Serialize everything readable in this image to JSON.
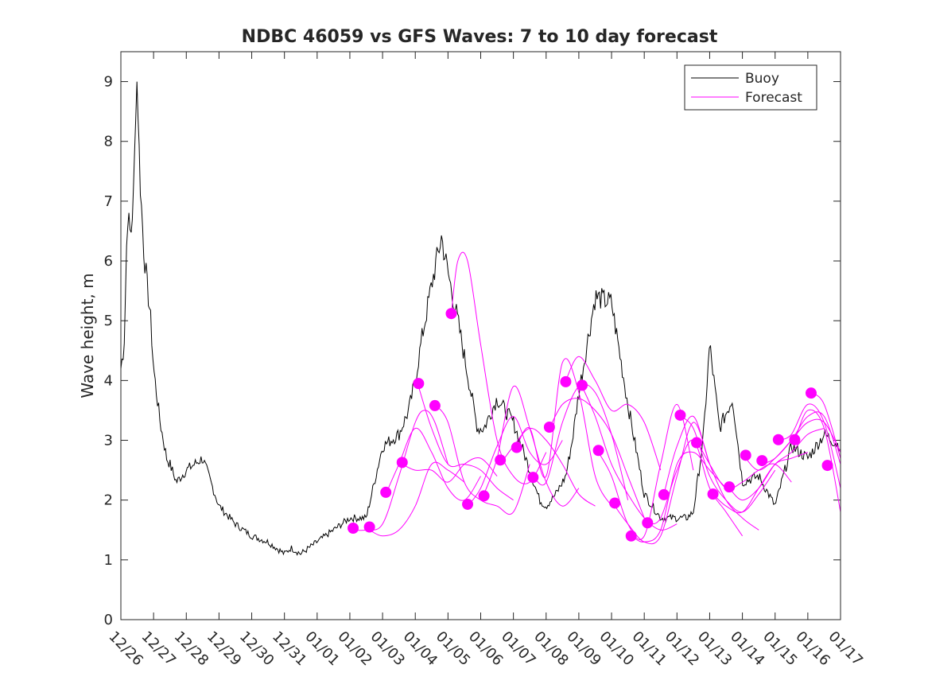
{
  "chart_data": {
    "type": "line",
    "title": "NDBC 46059 vs GFS Waves: 7 to 10 day forecast",
    "xlabel": "",
    "ylabel": "Wave height, m",
    "ylim": [
      0,
      9.5
    ],
    "yticks": [
      0,
      1,
      2,
      3,
      4,
      5,
      6,
      7,
      8,
      9
    ],
    "xlim": [
      0,
      22
    ],
    "xtick_labels": [
      "12/26",
      "12/27",
      "12/28",
      "12/29",
      "12/30",
      "12/31",
      "01/01",
      "01/02",
      "01/03",
      "01/04",
      "01/05",
      "01/06",
      "01/07",
      "01/08",
      "01/09",
      "01/10",
      "01/11",
      "01/12",
      "01/13",
      "01/14",
      "01/15",
      "01/16",
      "01/17"
    ],
    "legend": {
      "location": "top-right",
      "entries": [
        {
          "label": "Buoy",
          "color": "#000000"
        },
        {
          "label": "Forecast",
          "color": "#ff00ff"
        }
      ]
    },
    "series": [
      {
        "name": "Buoy",
        "color": "#000000",
        "x_days": [
          0,
          0.1,
          0.2,
          0.3,
          0.4,
          0.45,
          0.5,
          0.55,
          0.6,
          0.7,
          0.8,
          0.9,
          1.0,
          1.2,
          1.4,
          1.5,
          1.7,
          2.0,
          2.5,
          2.75,
          3.0,
          3.5,
          4.0,
          4.5,
          5.0,
          5.2,
          5.5,
          6.0,
          6.5,
          7.0,
          7.5,
          8.0,
          8.5,
          8.8,
          9.0,
          9.2,
          9.5,
          9.8,
          10.0,
          10.3,
          10.6,
          10.9,
          11.1,
          11.5,
          12.0,
          12.5,
          12.8,
          13.0,
          13.3,
          13.6,
          13.8,
          14.0,
          14.5,
          15.0,
          15.5,
          16.0,
          16.5,
          17.0,
          17.3,
          17.5,
          17.8,
          18.0,
          18.3,
          18.7,
          19.0,
          19.5,
          20.0,
          20.5,
          21.0,
          21.5,
          22.0
        ],
        "values": [
          4.2,
          4.6,
          6.8,
          6.4,
          7.2,
          8.6,
          9.1,
          8.0,
          7.2,
          6.2,
          5.6,
          5.1,
          4.2,
          3.3,
          2.7,
          2.6,
          2.3,
          2.5,
          2.7,
          2.3,
          1.9,
          1.6,
          1.4,
          1.3,
          1.1,
          1.2,
          1.1,
          1.3,
          1.5,
          1.7,
          1.7,
          2.9,
          3.1,
          3.5,
          4.0,
          4.7,
          5.6,
          6.4,
          5.8,
          5.0,
          4.1,
          3.2,
          3.2,
          3.7,
          3.3,
          2.5,
          2.0,
          1.9,
          2.1,
          2.4,
          3.0,
          3.8,
          5.4,
          5.3,
          3.6,
          2.1,
          1.7,
          1.7,
          1.7,
          1.8,
          3.0,
          4.6,
          3.2,
          3.7,
          2.3,
          2.4,
          1.9,
          2.9,
          2.7,
          3.1,
          2.9
        ],
        "markers": false
      },
      {
        "name": "Forecast",
        "color": "#ff00ff",
        "runs": [
          {
            "x_days": [
              7.1,
              7.5,
              8.0,
              8.5,
              9.0,
              9.3,
              9.6,
              10.0
            ],
            "values": [
              1.5,
              1.5,
              1.6,
              2.4,
              3.3,
              3.5,
              3.3,
              2.6
            ]
          },
          {
            "x_days": [
              7.6,
              8.0,
              8.5,
              9.0,
              9.5,
              10.0,
              10.5
            ],
            "values": [
              1.5,
              1.4,
              1.5,
              1.9,
              2.6,
              2.5,
              2.3
            ]
          },
          {
            "x_days": [
              8.1,
              8.5,
              9.0,
              9.5,
              10.0,
              10.5,
              11.0
            ],
            "values": [
              2.1,
              2.6,
              3.2,
              2.8,
              2.2,
              2.0,
              2.4
            ]
          },
          {
            "x_days": [
              8.6,
              9.0,
              9.5,
              10.0,
              10.5,
              11.0,
              11.5
            ],
            "values": [
              2.6,
              2.5,
              2.5,
              2.3,
              2.6,
              2.7,
              2.4
            ]
          },
          {
            "x_days": [
              9.1,
              9.5,
              10.0,
              10.5,
              11.0,
              11.5,
              12.0
            ],
            "values": [
              3.9,
              3.2,
              2.6,
              2.6,
              2.5,
              2.2,
              2.0
            ]
          },
          {
            "x_days": [
              9.6,
              10.0,
              10.5,
              11.0,
              11.5,
              12.0,
              12.5
            ],
            "values": [
              3.6,
              3.3,
              2.3,
              2.0,
              1.9,
              1.8,
              2.6
            ]
          },
          {
            "x_days": [
              10.1,
              10.3,
              10.6,
              11.0,
              11.5,
              12.0,
              12.5,
              13.0
            ],
            "values": [
              5.1,
              6.0,
              6.0,
              4.6,
              3.0,
              2.4,
              2.3,
              2.8
            ]
          },
          {
            "x_days": [
              10.6,
              11.0,
              11.5,
              12.0,
              12.5,
              13.0,
              13.5
            ],
            "values": [
              1.9,
              2.2,
              2.9,
              3.4,
              2.8,
              2.6,
              3.0
            ]
          },
          {
            "x_days": [
              11.1,
              11.5,
              12.0,
              12.5,
              13.0,
              13.5,
              14.0
            ],
            "values": [
              2.1,
              2.7,
              3.9,
              3.2,
              2.3,
              1.9,
              2.2
            ]
          },
          {
            "x_days": [
              11.6,
              12.0,
              12.5,
              13.0,
              13.5,
              14.0,
              14.5
            ],
            "values": [
              2.6,
              2.9,
              3.2,
              3.0,
              2.6,
              2.1,
              1.9
            ]
          },
          {
            "x_days": [
              12.1,
              12.5,
              13.0,
              13.5,
              14.0,
              14.5,
              15.0
            ],
            "values": [
              2.9,
              3.2,
              2.4,
              4.3,
              3.8,
              2.4,
              1.9
            ]
          },
          {
            "x_days": [
              12.6,
              13.0,
              13.5,
              14.0,
              14.5,
              15.0,
              15.5
            ],
            "values": [
              2.4,
              2.3,
              3.3,
              3.9,
              3.8,
              3.1,
              2.0
            ]
          },
          {
            "x_days": [
              13.1,
              13.5,
              14.0,
              14.5,
              15.0,
              15.5,
              16.0
            ],
            "values": [
              3.2,
              3.6,
              3.7,
              3.5,
              3.1,
              2.4,
              1.7
            ]
          },
          {
            "x_days": [
              13.6,
              14.0,
              14.5,
              15.0,
              15.5,
              16.0,
              16.5
            ],
            "values": [
              4.0,
              4.4,
              4.0,
              3.5,
              3.6,
              3.3,
              2.5
            ]
          },
          {
            "x_days": [
              14.1,
              14.5,
              15.0,
              15.5,
              16.0,
              16.5,
              17.0
            ],
            "values": [
              3.9,
              3.4,
              2.6,
              2.1,
              1.7,
              1.5,
              1.6
            ]
          },
          {
            "x_days": [
              14.6,
              15.0,
              15.5,
              16.0,
              16.5,
              17.0,
              17.5
            ],
            "values": [
              2.8,
              2.4,
              1.6,
              1.4,
              2.6,
              3.6,
              2.5
            ]
          },
          {
            "x_days": [
              15.1,
              15.5,
              16.0,
              16.5,
              17.0,
              17.5,
              18.0
            ],
            "values": [
              1.9,
              1.6,
              1.3,
              1.4,
              2.4,
              3.3,
              2.6
            ]
          },
          {
            "x_days": [
              15.6,
              16.0,
              16.5,
              17.0,
              17.5,
              18.0,
              18.5
            ],
            "values": [
              1.4,
              1.3,
              1.5,
              2.6,
              2.8,
              2.5,
              2.2
            ]
          },
          {
            "x_days": [
              16.1,
              16.5,
              17.0,
              17.5,
              18.0,
              18.5,
              19.0
            ],
            "values": [
              1.6,
              1.7,
              2.5,
              3.0,
              2.2,
              1.8,
              1.4
            ]
          },
          {
            "x_days": [
              16.6,
              17.0,
              17.5,
              18.0,
              18.5,
              19.0,
              19.5
            ],
            "values": [
              2.1,
              2.9,
              3.4,
              2.6,
              2.0,
              1.7,
              1.5
            ]
          },
          {
            "x_days": [
              17.1,
              17.5,
              18.0,
              18.5,
              19.0,
              19.5,
              20.0
            ],
            "values": [
              3.4,
              3.2,
              2.4,
              2.0,
              1.8,
              2.1,
              2.5
            ]
          },
          {
            "x_days": [
              17.6,
              18.0,
              18.5,
              19.0,
              19.5,
              20.0,
              20.5
            ],
            "values": [
              3.0,
              2.6,
              2.2,
              2.3,
              2.5,
              2.6,
              2.3
            ]
          },
          {
            "x_days": [
              18.1,
              18.5,
              19.0,
              19.5,
              20.0,
              20.5,
              21.0
            ],
            "values": [
              2.1,
              1.9,
              1.8,
              2.2,
              2.6,
              2.7,
              2.8
            ]
          },
          {
            "x_days": [
              18.6,
              19.0,
              19.5,
              20.0,
              20.5,
              21.0,
              21.5
            ],
            "values": [
              2.2,
              2.0,
              2.2,
              2.6,
              2.8,
              3.1,
              3.2
            ]
          },
          {
            "x_days": [
              19.1,
              19.5,
              20.0,
              20.5,
              21.0,
              21.5,
              22.0
            ],
            "values": [
              2.7,
              2.5,
              2.7,
              3.0,
              3.3,
              3.3,
              2.8
            ]
          },
          {
            "x_days": [
              19.6,
              20.0,
              20.5,
              21.0,
              21.5,
              22.0
            ],
            "values": [
              2.6,
              2.7,
              3.0,
              3.4,
              3.4,
              2.6
            ]
          },
          {
            "x_days": [
              20.1,
              20.5,
              21.0,
              21.5,
              22.0
            ],
            "values": [
              3.0,
              3.1,
              3.6,
              3.3,
              2.2
            ]
          },
          {
            "x_days": [
              20.6,
              21.0,
              21.5,
              22.0
            ],
            "values": [
              3.0,
              3.5,
              3.2,
              1.8
            ]
          },
          {
            "x_days": [
              21.1,
              21.5,
              22.0
            ],
            "values": [
              3.8,
              3.6,
              2.7
            ]
          }
        ],
        "start_markers": {
          "x_days": [
            7.1,
            7.6,
            8.1,
            8.6,
            9.1,
            9.6,
            10.1,
            10.6,
            11.1,
            11.6,
            12.1,
            12.6,
            13.1,
            13.6,
            14.1,
            14.6,
            15.1,
            15.6,
            16.1,
            16.6,
            17.1,
            17.6,
            18.1,
            18.6,
            19.1,
            19.6,
            20.1,
            20.6,
            21.1,
            21.6
          ],
          "values": [
            1.53,
            1.55,
            2.13,
            2.63,
            3.95,
            3.58,
            5.12,
            1.93,
            2.07,
            2.67,
            2.88,
            2.38,
            3.22,
            3.98,
            3.92,
            2.83,
            1.95,
            1.4,
            1.62,
            2.09,
            3.42,
            2.96,
            2.1,
            2.22,
            2.75,
            2.66,
            3.01,
            3.01,
            3.79,
            2.58
          ]
        }
      }
    ]
  }
}
